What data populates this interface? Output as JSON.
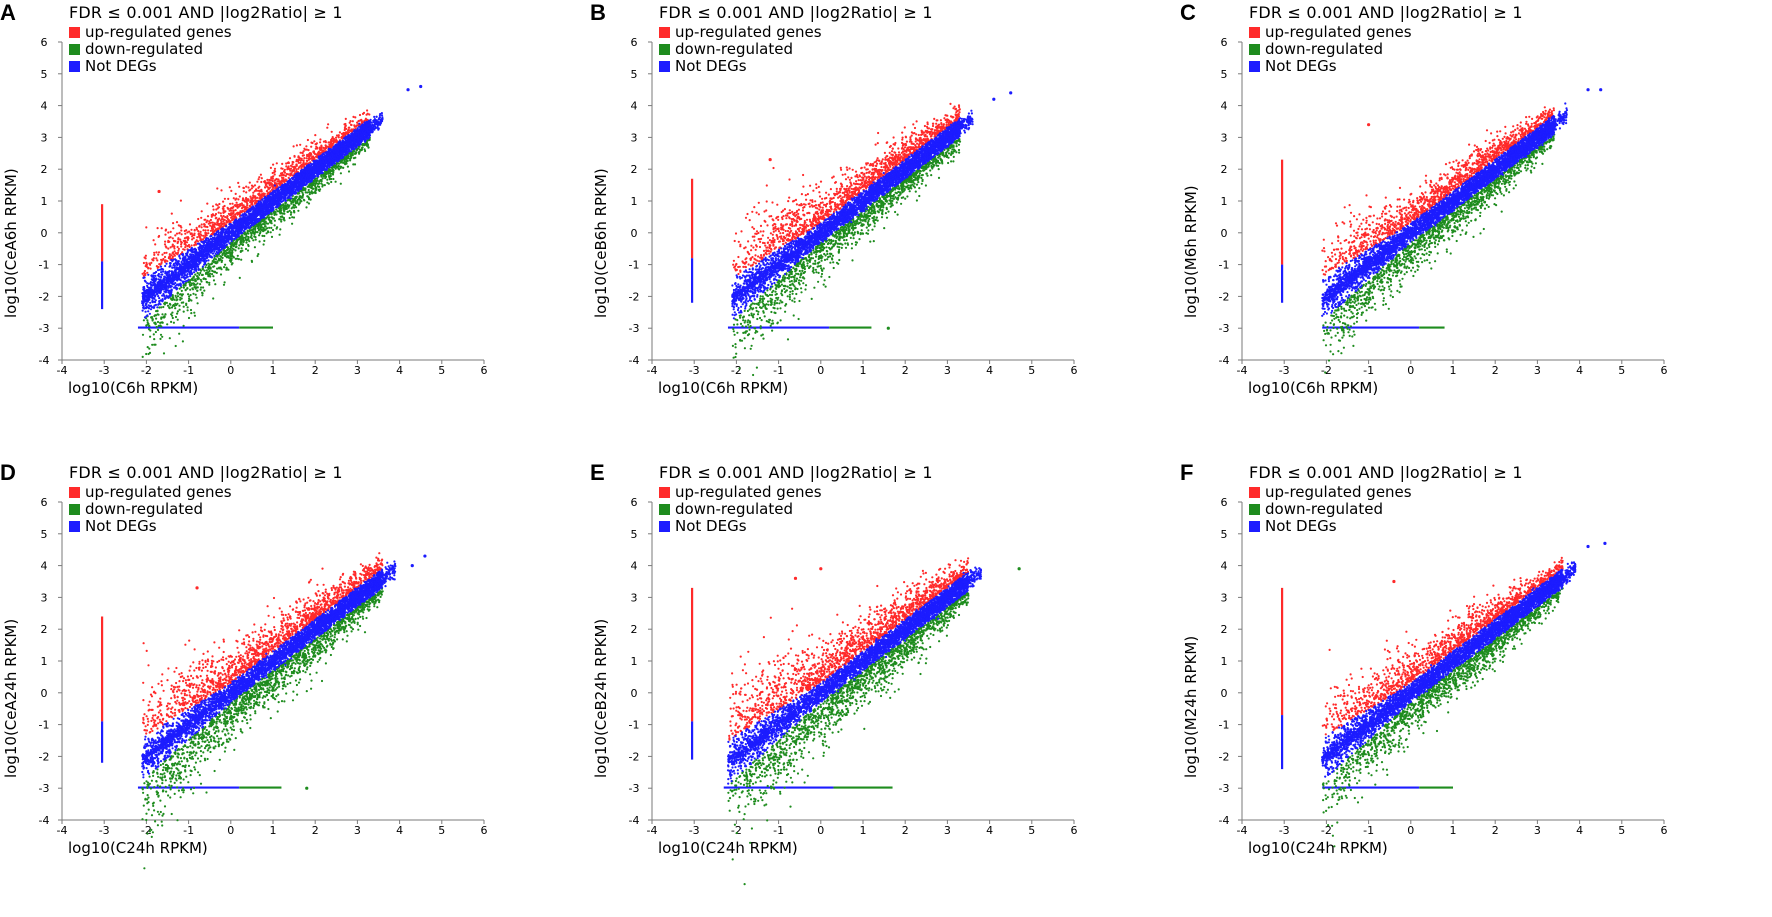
{
  "legend": {
    "title": "FDR ≤ 0.001 AND |log2Ratio| ≥ 1",
    "items": [
      {
        "label": "up-regulated genes",
        "color": "#ff2a2a"
      },
      {
        "label": "down-regulated",
        "color": "#1e8c1e"
      },
      {
        "label": "Not DEGs",
        "color": "#1c1cff"
      }
    ]
  },
  "colors": {
    "up": "#ff2a2a",
    "down": "#1e8c1e",
    "not": "#1c1cff",
    "axis": "#7a7a7a"
  },
  "chart_data": [
    {
      "id": "A",
      "type": "scatter",
      "xlabel": "log10(C6h RPKM)",
      "ylabel": "log10(CeA6h RPKM)",
      "xlim": [
        -4,
        6
      ],
      "ylim": [
        -4,
        6
      ],
      "xticks": [
        "-4",
        "-3",
        "-2",
        "-1",
        "0",
        "1",
        "2",
        "3",
        "4",
        "5",
        "6"
      ],
      "yticks": [
        "-4",
        "-3",
        "-2",
        "-1",
        "0",
        "1",
        "2",
        "3",
        "4",
        "5",
        "6"
      ],
      "cloud": {
        "x_min": -2.1,
        "x_max": 3.3,
        "spread": 1.0,
        "slope": 1.0
      },
      "zero_x_line": {
        "y_up_start": 0.9,
        "y_up_end": -0.9,
        "y_not_end": -2.4
      },
      "zero_y_line": {
        "x_start": -2.2,
        "x_not_end": 0.2,
        "x_down_end": 1.0
      },
      "outliers": [
        [
          4.2,
          4.5
        ],
        [
          4.5,
          4.6
        ],
        [
          -1.7,
          1.3
        ]
      ]
    },
    {
      "id": "B",
      "type": "scatter",
      "xlabel": "log10(C6h RPKM)",
      "ylabel": "log10(CeB6h RPKM)",
      "xlim": [
        -4,
        6
      ],
      "ylim": [
        -4,
        6
      ],
      "xticks": [
        "-4",
        "-3",
        "-2",
        "-1",
        "0",
        "1",
        "2",
        "3",
        "4",
        "5",
        "6"
      ],
      "yticks": [
        "-4",
        "-3",
        "-2",
        "-1",
        "0",
        "1",
        "2",
        "3",
        "4",
        "5",
        "6"
      ],
      "cloud": {
        "x_min": -2.1,
        "x_max": 3.3,
        "spread": 1.2,
        "slope": 1.0
      },
      "zero_x_line": {
        "y_up_start": 1.7,
        "y_up_end": -0.8,
        "y_not_end": -2.2
      },
      "zero_y_line": {
        "x_start": -2.2,
        "x_not_end": 0.2,
        "x_down_end": 1.2
      },
      "outliers": [
        [
          4.1,
          4.2
        ],
        [
          4.5,
          4.4
        ],
        [
          -1.2,
          2.3
        ],
        [
          1.6,
          -3.0
        ]
      ]
    },
    {
      "id": "C",
      "type": "scatter",
      "xlabel": "log10(C6h RPKM)",
      "ylabel": "log10(M6h RPKM)",
      "xlim": [
        -4,
        6
      ],
      "ylim": [
        -4,
        6
      ],
      "xticks": [
        "-4",
        "-3",
        "-2",
        "-1",
        "0",
        "1",
        "2",
        "3",
        "4",
        "5",
        "6"
      ],
      "yticks": [
        "-4",
        "-3",
        "-2",
        "-1",
        "0",
        "1",
        "2",
        "3",
        "4",
        "5",
        "6"
      ],
      "cloud": {
        "x_min": -2.1,
        "x_max": 3.4,
        "spread": 1.15,
        "slope": 1.0
      },
      "zero_x_line": {
        "y_up_start": 2.3,
        "y_up_end": -1.0,
        "y_not_end": -2.2
      },
      "zero_y_line": {
        "x_start": -2.1,
        "x_not_end": 0.2,
        "x_down_end": 0.8
      },
      "outliers": [
        [
          4.2,
          4.5
        ],
        [
          4.5,
          4.5
        ],
        [
          -1.0,
          3.4
        ]
      ]
    },
    {
      "id": "D",
      "type": "scatter",
      "xlabel": "log10(C24h RPKM)",
      "ylabel": "log10(CeA24h RPKM)",
      "xlim": [
        -4,
        6
      ],
      "ylim": [
        -4,
        6
      ],
      "xticks": [
        "-4",
        "-3",
        "-2",
        "-1",
        "0",
        "1",
        "2",
        "3",
        "4",
        "5",
        "6"
      ],
      "yticks": [
        "-4",
        "-3",
        "-2",
        "-1",
        "0",
        "1",
        "2",
        "3",
        "4",
        "5",
        "6"
      ],
      "cloud": {
        "x_min": -2.1,
        "x_max": 3.6,
        "spread": 1.35,
        "slope": 1.0
      },
      "zero_x_line": {
        "y_up_start": 2.4,
        "y_up_end": -0.9,
        "y_not_end": -2.2
      },
      "zero_y_line": {
        "x_start": -2.2,
        "x_not_end": 0.2,
        "x_down_end": 1.2
      },
      "outliers": [
        [
          4.6,
          4.3
        ],
        [
          4.3,
          4.0
        ],
        [
          -0.8,
          3.3
        ],
        [
          1.8,
          -3.0
        ]
      ]
    },
    {
      "id": "E",
      "type": "scatter",
      "xlabel": "log10(C24h RPKM)",
      "ylabel": "log10(CeB24h RPKM)",
      "xlim": [
        -4,
        6
      ],
      "ylim": [
        -4,
        6
      ],
      "xticks": [
        "-4",
        "-3",
        "-2",
        "-1",
        "0",
        "1",
        "2",
        "3",
        "4",
        "5",
        "6"
      ],
      "yticks": [
        "-4",
        "-3",
        "-2",
        "-1",
        "0",
        "1",
        "2",
        "3",
        "4",
        "5",
        "6"
      ],
      "cloud": {
        "x_min": -2.2,
        "x_max": 3.5,
        "spread": 1.45,
        "slope": 1.0
      },
      "zero_x_line": {
        "y_up_start": 3.3,
        "y_up_end": -0.9,
        "y_not_end": -2.1
      },
      "zero_y_line": {
        "x_start": -2.3,
        "x_not_end": 0.3,
        "x_down_end": 1.7
      },
      "outliers": [
        [
          4.7,
          3.9
        ],
        [
          3.4,
          3.5
        ],
        [
          -0.6,
          3.6
        ],
        [
          0.0,
          3.9
        ]
      ]
    },
    {
      "id": "F",
      "type": "scatter",
      "xlabel": "log10(C24h RPKM)",
      "ylabel": "log10(M24h RPKM)",
      "xlim": [
        -4,
        6
      ],
      "ylim": [
        -4,
        6
      ],
      "xticks": [
        "-4",
        "-3",
        "-2",
        "-1",
        "0",
        "1",
        "2",
        "3",
        "4",
        "5",
        "6"
      ],
      "yticks": [
        "-4",
        "-3",
        "-2",
        "-1",
        "0",
        "1",
        "2",
        "3",
        "4",
        "5",
        "6"
      ],
      "cloud": {
        "x_min": -2.1,
        "x_max": 3.6,
        "spread": 1.2,
        "slope": 1.0
      },
      "zero_x_line": {
        "y_up_start": 3.3,
        "y_up_end": -0.7,
        "y_not_end": -2.4
      },
      "zero_y_line": {
        "x_start": -2.1,
        "x_not_end": 0.2,
        "x_down_end": 1.0
      },
      "outliers": [
        [
          4.2,
          4.6
        ],
        [
          4.6,
          4.7
        ],
        [
          -0.4,
          3.5
        ],
        [
          3.7,
          3.5
        ]
      ]
    }
  ]
}
